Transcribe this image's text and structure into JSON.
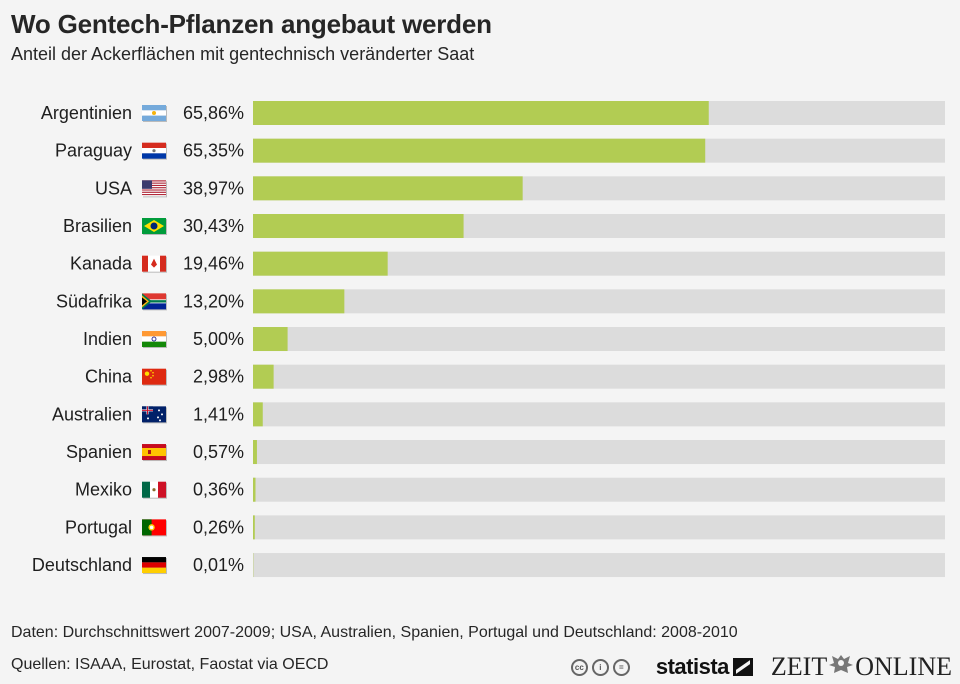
{
  "header": {
    "title": "Wo Gentech-Pflanzen angebaut werden",
    "subtitle": "Anteil der Ackerflächen mit gentechnisch veränderter Saat"
  },
  "footer": {
    "note": "Daten: Durchschnittswert 2007-2009; USA, Australien, Spanien, Portugal und Deutschland: 2008-2010",
    "source": "Quellen: ISAAA, Eurostat, Faostat via OECD",
    "cc_icons": [
      "cc-icon",
      "by-icon",
      "nd-icon"
    ],
    "brand_statista": "statista",
    "brand_zeit_left": "ZEIT",
    "brand_zeit_right": "ONLINE"
  },
  "colors": {
    "bar": "#b2cc53",
    "track": "#dcdcdc",
    "background": "#f4f4f4"
  },
  "chart_data": {
    "type": "bar",
    "orientation": "horizontal",
    "title": "Wo Gentech-Pflanzen angebaut werden",
    "subtitle": "Anteil der Ackerflächen mit gentechnisch veränderter Saat",
    "xlim": [
      0,
      100
    ],
    "unit": "%",
    "grid": false,
    "categories": [
      "Argentinien",
      "Paraguay",
      "USA",
      "Brasilien",
      "Kanada",
      "Südafrika",
      "Indien",
      "China",
      "Australien",
      "Spanien",
      "Mexiko",
      "Portugal",
      "Deutschland"
    ],
    "values": [
      65.86,
      65.35,
      38.97,
      30.43,
      19.46,
      13.2,
      5.0,
      2.98,
      1.41,
      0.57,
      0.36,
      0.26,
      0.01
    ],
    "labels": [
      "65,86%",
      "65,35%",
      "38,97%",
      "30,43%",
      "19,46%",
      "13,20%",
      "5,00%",
      "2,98%",
      "1,41%",
      "0,57%",
      "0,36%",
      "0,26%",
      "0,01%"
    ],
    "flags": [
      "flag-argentina",
      "flag-paraguay",
      "flag-usa",
      "flag-brazil",
      "flag-canada",
      "flag-south-africa",
      "flag-india",
      "flag-china",
      "flag-australia",
      "flag-spain",
      "flag-mexico",
      "flag-portugal",
      "flag-germany"
    ]
  }
}
